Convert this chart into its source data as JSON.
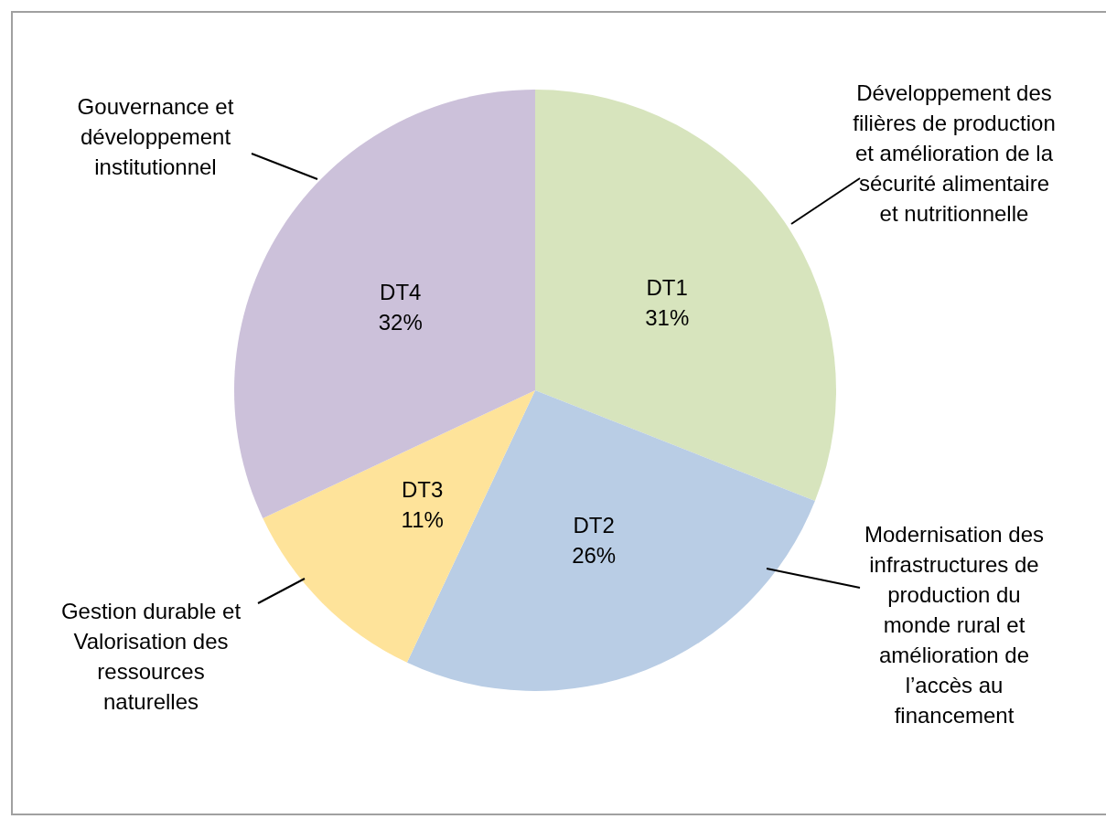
{
  "chart_data": {
    "type": "pie",
    "categories": [
      "DT1",
      "DT2",
      "DT3",
      "DT4"
    ],
    "values": [
      31,
      26,
      11,
      32
    ],
    "value_labels": [
      "31%",
      "26%",
      "11%",
      "32%"
    ],
    "colors": [
      "#d7e4bd",
      "#b9cde5",
      "#fee39a",
      "#ccc1da"
    ],
    "annotations": [
      "Développement des filières de production et amélioration de la sécurité alimentaire et nutritionnelle",
      "Modernisation des infrastructures de production du monde rural et amélioration de l’accès au financement",
      "Gestion durable et Valorisation des ressources naturelles",
      "Gouvernance et développement institutionnel"
    ]
  }
}
